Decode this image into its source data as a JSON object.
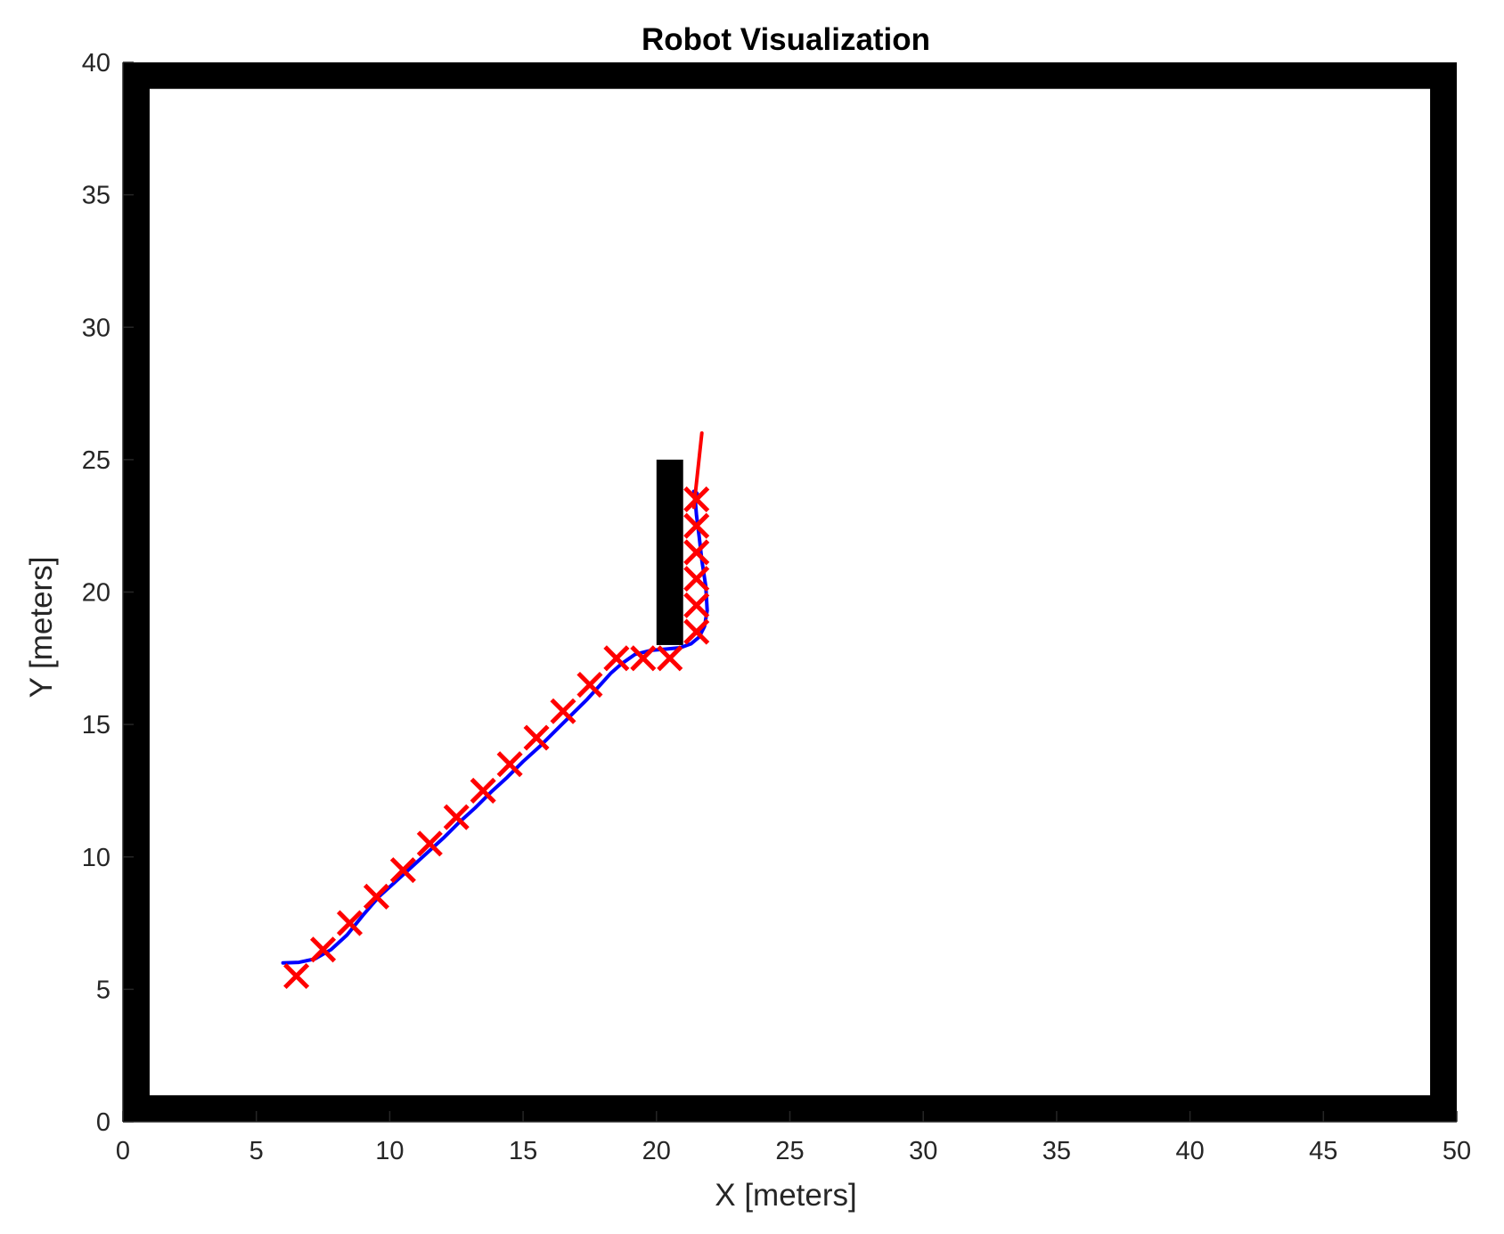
{
  "chart_data": {
    "type": "scatter",
    "title": "Robot Visualization",
    "xlabel": "X [meters]",
    "ylabel": "Y [meters]",
    "xlim": [
      0,
      50
    ],
    "ylim": [
      0,
      40
    ],
    "xticks": [
      "0",
      "5",
      "10",
      "15",
      "20",
      "25",
      "30",
      "35",
      "40",
      "45",
      "50"
    ],
    "yticks": [
      "0",
      "5",
      "10",
      "15",
      "20",
      "25",
      "30",
      "35",
      "40"
    ],
    "grid": false,
    "colors": {
      "obstacle": "#000000",
      "path": "#0000ff",
      "markers": "#ff0000",
      "heading": "#ff0000"
    },
    "obstacles": [
      {
        "name": "wall-bottom",
        "x0": 0,
        "y0": 0,
        "x1": 50,
        "y1": 1
      },
      {
        "name": "wall-top",
        "x0": 0,
        "y0": 39,
        "x1": 50,
        "y1": 40
      },
      {
        "name": "wall-left",
        "x0": 0,
        "y0": 0,
        "x1": 1,
        "y1": 40
      },
      {
        "name": "wall-right",
        "x0": 49,
        "y0": 0,
        "x1": 50,
        "y1": 40
      },
      {
        "name": "inner-block",
        "x0": 20,
        "y0": 18,
        "x1": 21,
        "y1": 25
      }
    ],
    "path": {
      "x": [
        6.0,
        6.6,
        7.2,
        7.8,
        8.4,
        9.0,
        9.6,
        10.2,
        10.8,
        11.4,
        12.0,
        12.6,
        13.2,
        13.8,
        14.4,
        15.0,
        15.6,
        16.2,
        16.8,
        17.4,
        17.9,
        18.3,
        18.7,
        19.2,
        19.8,
        20.4,
        20.9,
        21.3,
        21.6,
        21.8,
        21.9,
        21.85,
        21.7,
        21.6,
        21.5,
        21.45,
        21.4,
        21.5,
        21.6
      ],
      "y": [
        6.0,
        6.02,
        6.15,
        6.5,
        7.05,
        7.8,
        8.5,
        9.05,
        9.6,
        10.15,
        10.7,
        11.3,
        11.85,
        12.45,
        13.0,
        13.6,
        14.15,
        14.75,
        15.35,
        15.95,
        16.5,
        16.95,
        17.3,
        17.65,
        17.8,
        17.85,
        17.9,
        18.05,
        18.3,
        18.7,
        19.3,
        20.2,
        21.2,
        22.1,
        22.9,
        23.5,
        23.8,
        23.75,
        23.6
      ]
    },
    "markers": {
      "x": [
        6.5,
        7.5,
        8.5,
        9.5,
        10.5,
        11.5,
        12.5,
        13.5,
        14.5,
        15.5,
        16.5,
        17.5,
        18.5,
        19.5,
        20.5,
        21.5,
        21.5,
        21.5,
        21.5,
        21.5,
        21.5
      ],
      "y": [
        5.5,
        6.5,
        7.5,
        8.5,
        9.5,
        10.5,
        11.5,
        12.5,
        13.5,
        14.5,
        15.5,
        16.5,
        17.5,
        17.5,
        17.5,
        18.5,
        19.5,
        20.5,
        21.5,
        22.5,
        23.5
      ]
    },
    "heading": {
      "x": [
        21.4,
        21.7
      ],
      "y": [
        23.2,
        26.0
      ]
    }
  }
}
